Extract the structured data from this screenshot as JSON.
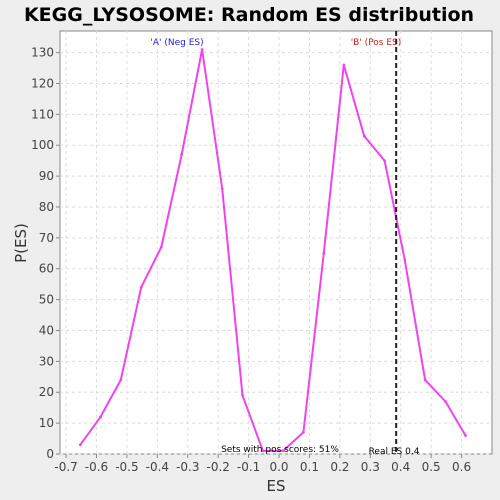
{
  "chart_data": {
    "type": "line",
    "title": "KEGG_LYSOSOME: Random ES distribution",
    "xlabel": "ES",
    "ylabel": "P(ES)",
    "xlim": [
      -0.72,
      0.7
    ],
    "ylim": [
      0,
      137
    ],
    "grid": true,
    "x_ticks": [
      -0.7,
      -0.6,
      -0.5,
      -0.4,
      -0.3,
      -0.2,
      -0.1,
      0.0,
      0.1,
      0.2,
      0.3,
      0.4,
      0.5,
      0.6
    ],
    "x_tick_labels": [
      "-0.7",
      "-0.6",
      "-0.5",
      "-0.4",
      "-0.3",
      "-0.2",
      "-0.1",
      "0.0",
      "0.1",
      "0.2",
      "0.3",
      "0.4",
      "0.5",
      "0.6"
    ],
    "y_ticks": [
      0,
      10,
      20,
      30,
      40,
      50,
      60,
      70,
      80,
      90,
      100,
      110,
      120,
      130
    ],
    "y_tick_labels": [
      "0",
      "10",
      "20",
      "30",
      "40",
      "50",
      "60",
      "70",
      "80",
      "90",
      "100",
      "110",
      "120",
      "130"
    ],
    "series": [
      {
        "color": "#ee44ee",
        "x": [
          -0.653,
          -0.587,
          -0.52,
          -0.453,
          -0.387,
          -0.32,
          -0.253,
          -0.187,
          -0.12,
          -0.053,
          0.013,
          0.08,
          0.147,
          0.213,
          0.28,
          0.347,
          0.413,
          0.48,
          0.547,
          0.613
        ],
        "y": [
          3,
          12,
          24,
          54,
          67,
          97,
          131,
          86,
          19,
          1,
          1,
          7,
          65,
          126,
          103,
          95,
          63,
          24,
          17,
          6
        ]
      }
    ],
    "real_es": 0.385,
    "annotations": {
      "neg_region": "'A' (Neg ES)",
      "pos_region": "'B' (Pos ES)",
      "pos_fraction": "Sets with pos scores: 51%",
      "real_es_label": "Real ES 0.4"
    },
    "colors": {
      "line": "#ee44ee",
      "neg_label": "#2222cc",
      "pos_label": "#cc2222",
      "marker_line": "#222222",
      "grid": "#dddddd",
      "plot_bg": "#ffffff",
      "page_bg": "#eeeeee"
    }
  }
}
